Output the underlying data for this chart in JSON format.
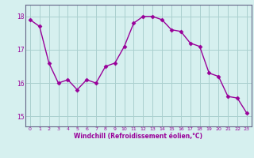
{
  "x": [
    0,
    1,
    2,
    3,
    4,
    5,
    6,
    7,
    8,
    9,
    10,
    11,
    12,
    13,
    14,
    15,
    16,
    17,
    18,
    19,
    20,
    21,
    22,
    23
  ],
  "y": [
    17.9,
    17.7,
    16.6,
    16.0,
    16.1,
    15.8,
    16.1,
    16.0,
    16.5,
    16.6,
    17.1,
    17.8,
    18.0,
    18.0,
    17.9,
    17.6,
    17.55,
    17.2,
    17.1,
    16.3,
    16.2,
    15.6,
    15.55,
    15.1
  ],
  "xlim": [
    -0.5,
    23.5
  ],
  "ylim": [
    14.7,
    18.35
  ],
  "yticks": [
    15,
    16,
    17,
    18
  ],
  "xticks": [
    0,
    1,
    2,
    3,
    4,
    5,
    6,
    7,
    8,
    9,
    10,
    11,
    12,
    13,
    14,
    15,
    16,
    17,
    18,
    19,
    20,
    21,
    22,
    23
  ],
  "xlabel": "Windchill (Refroidissement éolien,°C)",
  "line_color": "#990099",
  "marker": "D",
  "marker_size": 2.5,
  "bg_color": "#d6f0ef",
  "grid_color": "#aacfcf",
  "tick_color": "#990099",
  "label_color": "#990099",
  "spine_color": "#666688"
}
